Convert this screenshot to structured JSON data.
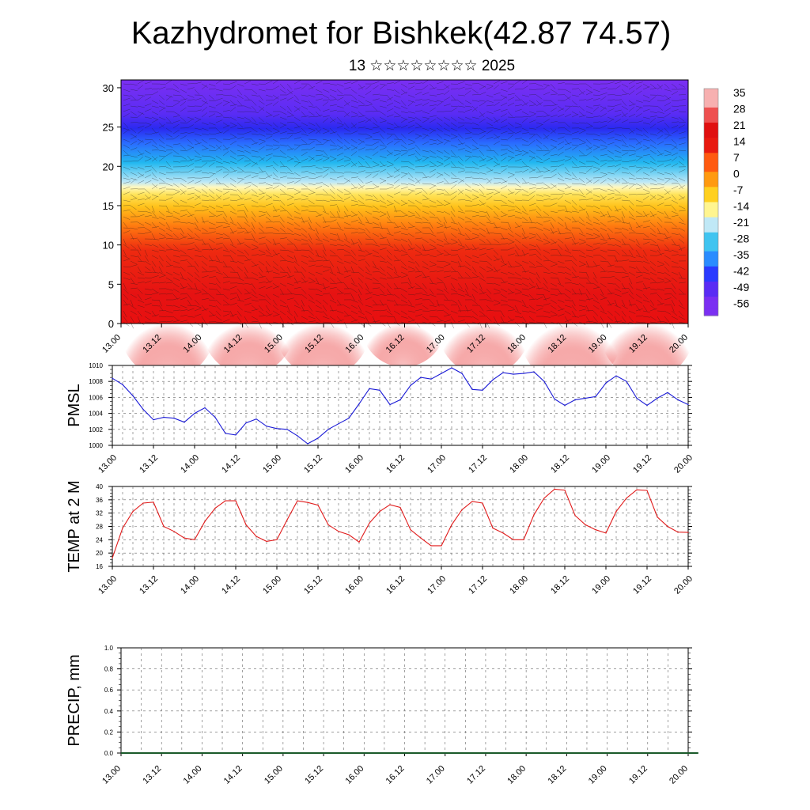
{
  "title": "Kazhydromet for Bishkek(42.87 74.57)",
  "subtitle": "13 ☆☆☆☆☆☆☆☆ 2025",
  "colors": {
    "pmsl_line": "#1a1ad6",
    "temp_line": "#e01a1a",
    "precip_line": "#1a5a2a",
    "colormap": [
      "#7b2ff2",
      "#3a1dff",
      "#2a6cff",
      "#22b8f0",
      "#bfe8f6",
      "#fff27a",
      "#ffc21a",
      "#ff7a10",
      "#e81010",
      "#d40a0a",
      "#f7a8a8"
    ]
  },
  "chart_data": [
    {
      "type": "heatmap",
      "name": "upper-air temperature and wind cross-section",
      "x_ticks": [
        "13.00",
        "13.12",
        "14.00",
        "14.12",
        "15.00",
        "15.12",
        "16.00",
        "16.12",
        "17.00",
        "17.12",
        "18.00",
        "18.12",
        "19.00",
        "19.12",
        "20.00"
      ],
      "y_ticks": [
        "0",
        "5",
        "10",
        "15",
        "20",
        "25",
        "30"
      ],
      "ylim": [
        0,
        31
      ],
      "colorbar": {
        "labels": [
          "35",
          "28",
          "21",
          "14",
          "7",
          "0",
          "-7",
          "-14",
          "-21",
          "-28",
          "-35",
          "-42",
          "-49",
          "-56"
        ]
      },
      "grid": false
    },
    {
      "type": "line",
      "ylabel": "PMSL",
      "ylim": [
        1000,
        1010
      ],
      "y_ticks": [
        "1000",
        "1002",
        "1004",
        "1006",
        "1008",
        "1010"
      ],
      "x_ticks": [
        "13.00",
        "13.12",
        "14.00",
        "14.12",
        "15.00",
        "15.12",
        "16.00",
        "16.12",
        "17.00",
        "17.12",
        "18.00",
        "18.12",
        "19.00",
        "19.12",
        "20.00"
      ],
      "x_step_hours": 3,
      "grid": true,
      "values": [
        1008.4,
        1007.6,
        1006.2,
        1004.5,
        1003.2,
        1003.5,
        1003.4,
        1002.9,
        1004.0,
        1004.7,
        1003.5,
        1001.5,
        1001.3,
        1002.8,
        1003.3,
        1002.4,
        1002.1,
        1002.0,
        1001.2,
        1000.2,
        1000.9,
        1002.0,
        1002.7,
        1003.4,
        1005.2,
        1007.1,
        1006.9,
        1005.1,
        1005.7,
        1007.5,
        1008.5,
        1008.3,
        1009.0,
        1009.7,
        1009.0,
        1007.0,
        1006.9,
        1008.2,
        1009.1,
        1008.9,
        1009.0,
        1009.2,
        1008.0,
        1005.8,
        1005.0,
        1005.7,
        1005.9,
        1006.1,
        1007.8,
        1008.7,
        1008.0,
        1005.9,
        1005.0,
        1005.9,
        1006.6,
        1005.7,
        1005.1
      ]
    },
    {
      "type": "line",
      "ylabel": "TEMP at 2 M",
      "ylim": [
        16,
        40
      ],
      "y_ticks": [
        "16",
        "20",
        "24",
        "28",
        "32",
        "36",
        "40"
      ],
      "x_ticks": [
        "13.00",
        "13.12",
        "14.00",
        "14.12",
        "15.00",
        "15.12",
        "16.00",
        "16.12",
        "17.00",
        "17.12",
        "18.00",
        "18.12",
        "19.00",
        "19.12",
        "20.00"
      ],
      "x_step_hours": 3,
      "grid": true,
      "values": [
        18.5,
        27.5,
        32.5,
        35.0,
        35.3,
        28.0,
        26.5,
        24.5,
        24.0,
        29.5,
        33.5,
        35.7,
        35.7,
        28.5,
        25.0,
        23.5,
        24.0,
        30.0,
        35.7,
        35.2,
        34.4,
        28.5,
        26.5,
        25.5,
        23.3,
        29.0,
        32.5,
        34.5,
        33.7,
        27.0,
        24.5,
        22.2,
        22.2,
        28.5,
        33.0,
        35.5,
        35.0,
        27.5,
        26.0,
        24.0,
        24.0,
        31.5,
        36.5,
        39.2,
        38.9,
        31.3,
        28.5,
        27.0,
        26.0,
        32.5,
        36.5,
        39.0,
        38.8,
        30.8,
        28.0,
        26.3,
        26.2
      ]
    },
    {
      "type": "line",
      "ylabel": "PRECIP, mm",
      "ylim": [
        0,
        1
      ],
      "y_ticks": [
        "0.0",
        "0.2",
        "0.4",
        "0.6",
        "0.8",
        "1.0"
      ],
      "x_ticks": [
        "13.00",
        "13.12",
        "14.00",
        "14.12",
        "15.00",
        "15.12",
        "16.00",
        "16.12",
        "17.00",
        "17.12",
        "18.00",
        "18.12",
        "19.00",
        "19.12",
        "20.00"
      ],
      "x_step_hours": 3,
      "grid": true,
      "values": [
        0,
        0,
        0,
        0,
        0,
        0,
        0,
        0,
        0,
        0,
        0,
        0,
        0,
        0,
        0,
        0,
        0,
        0,
        0,
        0,
        0,
        0,
        0,
        0,
        0,
        0,
        0,
        0,
        0,
        0,
        0,
        0,
        0,
        0,
        0,
        0,
        0,
        0,
        0,
        0,
        0,
        0,
        0,
        0,
        0,
        0,
        0,
        0,
        0,
        0,
        0,
        0,
        0,
        0,
        0,
        0,
        0,
        0
      ]
    }
  ]
}
